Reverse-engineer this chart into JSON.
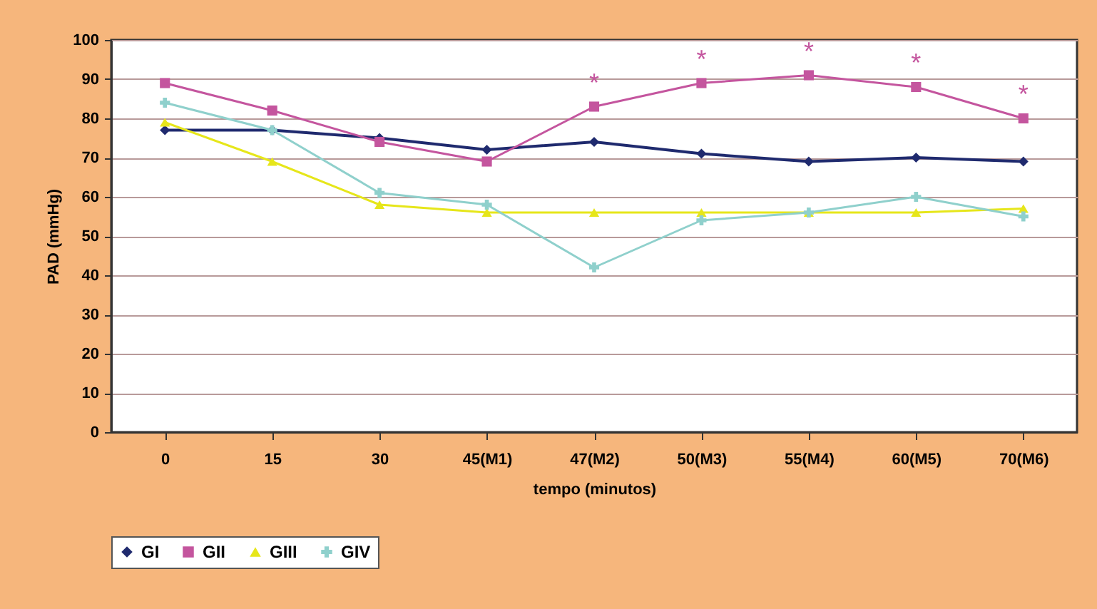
{
  "chart_data": {
    "type": "line",
    "xlabel": "tempo (minutos)",
    "ylabel": "PAD (mmHg)",
    "categories": [
      "0",
      "15",
      "30",
      "45(M1)",
      "47(M2)",
      "50(M3)",
      "55(M4)",
      "60(M5)",
      "70(M6)"
    ],
    "series": [
      {
        "name": "GI",
        "color": "#1f2a6e",
        "marker": "diamond",
        "values": [
          77,
          77,
          75,
          72,
          74,
          71,
          69,
          70,
          69
        ]
      },
      {
        "name": "GII",
        "color": "#c4559e",
        "marker": "square",
        "values": [
          89,
          82,
          74,
          69,
          83,
          89,
          91,
          88,
          80
        ]
      },
      {
        "name": "GIII",
        "color": "#e6e61a",
        "marker": "triangle",
        "values": [
          79,
          69,
          58,
          56,
          56,
          56,
          56,
          56,
          57
        ]
      },
      {
        "name": "GIV",
        "color": "#8fd0cc",
        "marker": "cross",
        "values": [
          84,
          77,
          61,
          58,
          42,
          54,
          56,
          60,
          55
        ]
      }
    ],
    "annotations": [
      {
        "text": "*",
        "x": "47(M2)",
        "y": 83
      },
      {
        "text": "*",
        "x": "50(M3)",
        "y": 89
      },
      {
        "text": "*",
        "x": "55(M4)",
        "y": 91
      },
      {
        "text": "*",
        "x": "60(M5)",
        "y": 88
      },
      {
        "text": "*",
        "x": "70(M6)",
        "y": 80
      }
    ],
    "ylim": [
      0,
      100
    ],
    "yticks": [
      0,
      10,
      20,
      30,
      40,
      50,
      60,
      70,
      80,
      90,
      100
    ],
    "grid": "y",
    "legend": "bottom",
    "line_style": "solid"
  }
}
